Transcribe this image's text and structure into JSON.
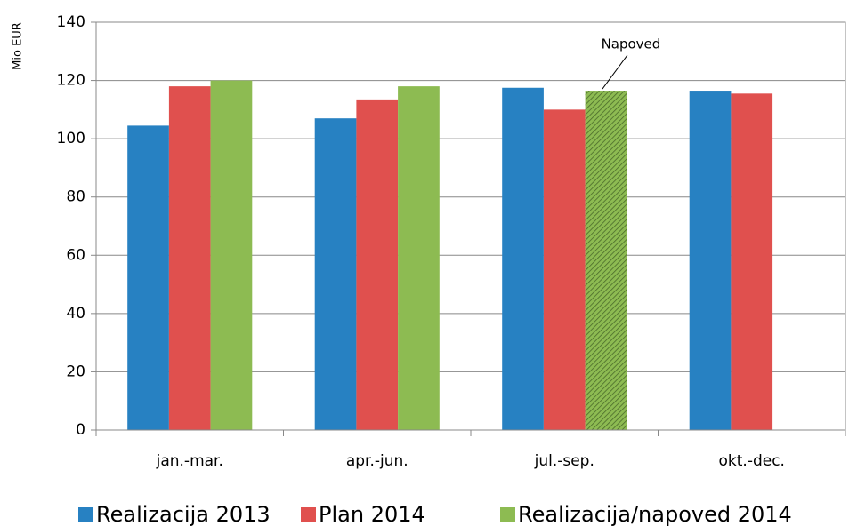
{
  "chart_data": {
    "type": "bar",
    "y_label": "Mio EUR",
    "annotation": "Napoved",
    "categories": [
      "jan.-mar.",
      "apr.-jun.",
      "jul.-sep.",
      "okt.-dec."
    ],
    "series": [
      {
        "name": "Realizacija 2013",
        "color": "#2781c2",
        "values": [
          104.5,
          107,
          117.5,
          116.5
        ]
      },
      {
        "name": "Plan 2014",
        "color": "#e0504e",
        "values": [
          118,
          113.5,
          110,
          115.5
        ]
      },
      {
        "name": "Realizacija/napoved 2014",
        "color": "#8dbb52",
        "values": [
          120,
          118,
          116.5,
          null
        ],
        "hatched": [
          false,
          false,
          true,
          false
        ]
      }
    ],
    "ylim": [
      0,
      140
    ],
    "yticks": [
      0,
      20,
      40,
      60,
      80,
      100,
      120,
      140
    ],
    "grid": true
  }
}
